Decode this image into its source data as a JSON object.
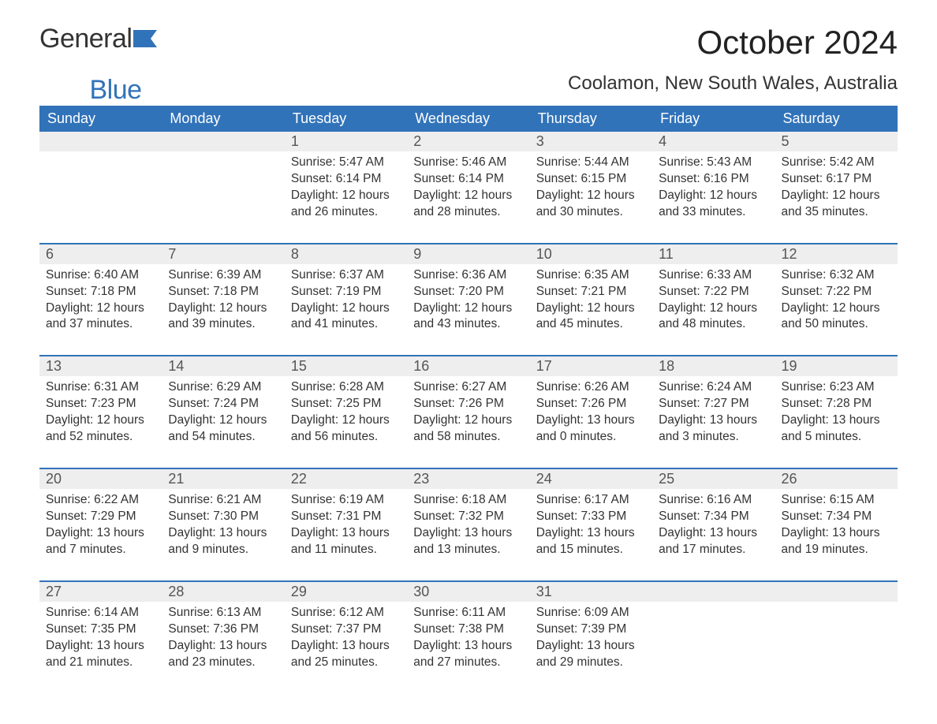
{
  "brand": {
    "part1": "General",
    "part2": "Blue"
  },
  "title": "October 2024",
  "location": "Coolamon, New South Wales, Australia",
  "colors": {
    "header_bg": "#3173b9",
    "header_text": "#ffffff",
    "daynum_bg": "#eeeeee",
    "text": "#333333",
    "brand_blue": "#3173b9"
  },
  "weekdays": [
    "Sunday",
    "Monday",
    "Tuesday",
    "Wednesday",
    "Thursday",
    "Friday",
    "Saturday"
  ],
  "weeks": [
    [
      {
        "day": "",
        "lines": []
      },
      {
        "day": "",
        "lines": []
      },
      {
        "day": "1",
        "lines": [
          "Sunrise: 5:47 AM",
          "Sunset: 6:14 PM",
          "Daylight: 12 hours and 26 minutes."
        ]
      },
      {
        "day": "2",
        "lines": [
          "Sunrise: 5:46 AM",
          "Sunset: 6:14 PM",
          "Daylight: 12 hours and 28 minutes."
        ]
      },
      {
        "day": "3",
        "lines": [
          "Sunrise: 5:44 AM",
          "Sunset: 6:15 PM",
          "Daylight: 12 hours and 30 minutes."
        ]
      },
      {
        "day": "4",
        "lines": [
          "Sunrise: 5:43 AM",
          "Sunset: 6:16 PM",
          "Daylight: 12 hours and 33 minutes."
        ]
      },
      {
        "day": "5",
        "lines": [
          "Sunrise: 5:42 AM",
          "Sunset: 6:17 PM",
          "Daylight: 12 hours and 35 minutes."
        ]
      }
    ],
    [
      {
        "day": "6",
        "lines": [
          "Sunrise: 6:40 AM",
          "Sunset: 7:18 PM",
          "Daylight: 12 hours and 37 minutes."
        ]
      },
      {
        "day": "7",
        "lines": [
          "Sunrise: 6:39 AM",
          "Sunset: 7:18 PM",
          "Daylight: 12 hours and 39 minutes."
        ]
      },
      {
        "day": "8",
        "lines": [
          "Sunrise: 6:37 AM",
          "Sunset: 7:19 PM",
          "Daylight: 12 hours and 41 minutes."
        ]
      },
      {
        "day": "9",
        "lines": [
          "Sunrise: 6:36 AM",
          "Sunset: 7:20 PM",
          "Daylight: 12 hours and 43 minutes."
        ]
      },
      {
        "day": "10",
        "lines": [
          "Sunrise: 6:35 AM",
          "Sunset: 7:21 PM",
          "Daylight: 12 hours and 45 minutes."
        ]
      },
      {
        "day": "11",
        "lines": [
          "Sunrise: 6:33 AM",
          "Sunset: 7:22 PM",
          "Daylight: 12 hours and 48 minutes."
        ]
      },
      {
        "day": "12",
        "lines": [
          "Sunrise: 6:32 AM",
          "Sunset: 7:22 PM",
          "Daylight: 12 hours and 50 minutes."
        ]
      }
    ],
    [
      {
        "day": "13",
        "lines": [
          "Sunrise: 6:31 AM",
          "Sunset: 7:23 PM",
          "Daylight: 12 hours and 52 minutes."
        ]
      },
      {
        "day": "14",
        "lines": [
          "Sunrise: 6:29 AM",
          "Sunset: 7:24 PM",
          "Daylight: 12 hours and 54 minutes."
        ]
      },
      {
        "day": "15",
        "lines": [
          "Sunrise: 6:28 AM",
          "Sunset: 7:25 PM",
          "Daylight: 12 hours and 56 minutes."
        ]
      },
      {
        "day": "16",
        "lines": [
          "Sunrise: 6:27 AM",
          "Sunset: 7:26 PM",
          "Daylight: 12 hours and 58 minutes."
        ]
      },
      {
        "day": "17",
        "lines": [
          "Sunrise: 6:26 AM",
          "Sunset: 7:26 PM",
          "Daylight: 13 hours and 0 minutes."
        ]
      },
      {
        "day": "18",
        "lines": [
          "Sunrise: 6:24 AM",
          "Sunset: 7:27 PM",
          "Daylight: 13 hours and 3 minutes."
        ]
      },
      {
        "day": "19",
        "lines": [
          "Sunrise: 6:23 AM",
          "Sunset: 7:28 PM",
          "Daylight: 13 hours and 5 minutes."
        ]
      }
    ],
    [
      {
        "day": "20",
        "lines": [
          "Sunrise: 6:22 AM",
          "Sunset: 7:29 PM",
          "Daylight: 13 hours and 7 minutes."
        ]
      },
      {
        "day": "21",
        "lines": [
          "Sunrise: 6:21 AM",
          "Sunset: 7:30 PM",
          "Daylight: 13 hours and 9 minutes."
        ]
      },
      {
        "day": "22",
        "lines": [
          "Sunrise: 6:19 AM",
          "Sunset: 7:31 PM",
          "Daylight: 13 hours and 11 minutes."
        ]
      },
      {
        "day": "23",
        "lines": [
          "Sunrise: 6:18 AM",
          "Sunset: 7:32 PM",
          "Daylight: 13 hours and 13 minutes."
        ]
      },
      {
        "day": "24",
        "lines": [
          "Sunrise: 6:17 AM",
          "Sunset: 7:33 PM",
          "Daylight: 13 hours and 15 minutes."
        ]
      },
      {
        "day": "25",
        "lines": [
          "Sunrise: 6:16 AM",
          "Sunset: 7:34 PM",
          "Daylight: 13 hours and 17 minutes."
        ]
      },
      {
        "day": "26",
        "lines": [
          "Sunrise: 6:15 AM",
          "Sunset: 7:34 PM",
          "Daylight: 13 hours and 19 minutes."
        ]
      }
    ],
    [
      {
        "day": "27",
        "lines": [
          "Sunrise: 6:14 AM",
          "Sunset: 7:35 PM",
          "Daylight: 13 hours and 21 minutes."
        ]
      },
      {
        "day": "28",
        "lines": [
          "Sunrise: 6:13 AM",
          "Sunset: 7:36 PM",
          "Daylight: 13 hours and 23 minutes."
        ]
      },
      {
        "day": "29",
        "lines": [
          "Sunrise: 6:12 AM",
          "Sunset: 7:37 PM",
          "Daylight: 13 hours and 25 minutes."
        ]
      },
      {
        "day": "30",
        "lines": [
          "Sunrise: 6:11 AM",
          "Sunset: 7:38 PM",
          "Daylight: 13 hours and 27 minutes."
        ]
      },
      {
        "day": "31",
        "lines": [
          "Sunrise: 6:09 AM",
          "Sunset: 7:39 PM",
          "Daylight: 13 hours and 29 minutes."
        ]
      },
      {
        "day": "",
        "lines": []
      },
      {
        "day": "",
        "lines": []
      }
    ]
  ]
}
